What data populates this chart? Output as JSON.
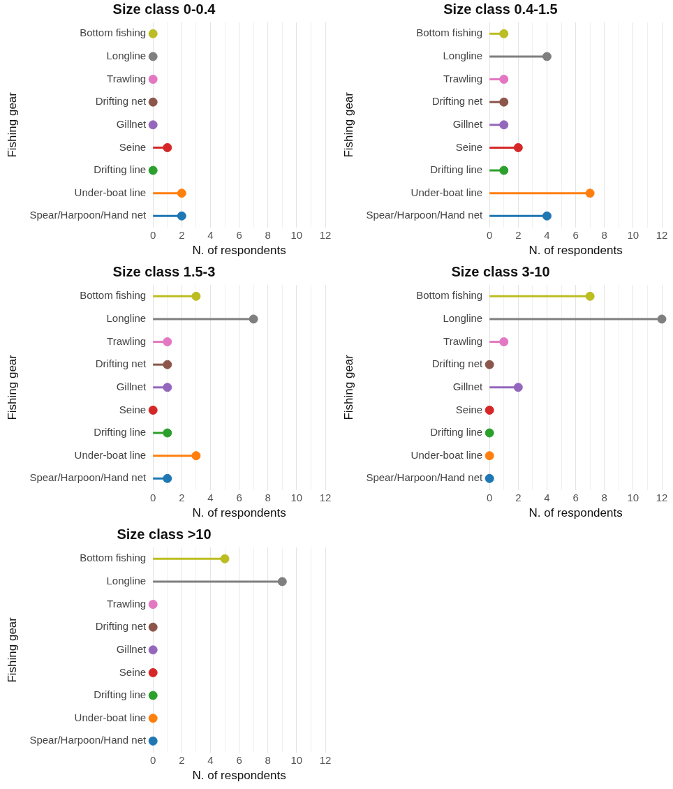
{
  "chart_data": [
    {
      "type": "lollipop",
      "orientation": "horizontal",
      "title": "Size class 0-0.4",
      "xlabel": "N. of respondents",
      "ylabel": "Fishing gear",
      "categories": [
        "Bottom fishing",
        "Longline",
        "Trawling",
        "Drifting net",
        "Gillnet",
        "Seine",
        "Drifting line",
        "Under-boat line",
        "Spear/Harpoon/Hand net"
      ],
      "values": [
        0,
        0,
        0,
        0,
        0,
        1,
        0,
        2,
        2
      ],
      "colors": [
        "#bcbd22",
        "#7f7f7f",
        "#e377c2",
        "#8c564b",
        "#9467bd",
        "#d62728",
        "#2ca02c",
        "#ff7f0e",
        "#1f77b4"
      ],
      "xlim": [
        0,
        12
      ],
      "xticks": [
        0,
        {
          "value": 1,
          "label": null
        },
        2,
        {
          "value": 3,
          "label": null
        },
        4,
        {
          "value": 5,
          "label": null
        },
        6,
        {
          "value": 7,
          "label": null
        },
        8,
        {
          "value": 9,
          "label": null
        },
        10,
        {
          "value": 11,
          "label": null
        },
        12
      ],
      "grid": "x",
      "legend": false,
      "marker": "circle"
    },
    {
      "type": "lollipop",
      "orientation": "horizontal",
      "title": "Size class 0.4-1.5",
      "xlabel": "N. of respondents",
      "ylabel": "Fishing gear",
      "categories": [
        "Bottom fishing",
        "Longline",
        "Trawling",
        "Drifting net",
        "Gillnet",
        "Seine",
        "Drifting line",
        "Under-boat line",
        "Spear/Harpoon/Hand net"
      ],
      "values": [
        1,
        4,
        1,
        1,
        1,
        2,
        1,
        7,
        4
      ],
      "colors": [
        "#bcbd22",
        "#7f7f7f",
        "#e377c2",
        "#8c564b",
        "#9467bd",
        "#d62728",
        "#2ca02c",
        "#ff7f0e",
        "#1f77b4"
      ],
      "xlim": [
        0,
        12
      ],
      "xticks": [
        0,
        {
          "value": 1,
          "label": null
        },
        2,
        {
          "value": 3,
          "label": null
        },
        4,
        {
          "value": 5,
          "label": null
        },
        6,
        {
          "value": 7,
          "label": null
        },
        8,
        {
          "value": 9,
          "label": null
        },
        10,
        {
          "value": 11,
          "label": null
        },
        12
      ],
      "grid": "x",
      "legend": false,
      "marker": "circle"
    },
    {
      "type": "lollipop",
      "orientation": "horizontal",
      "title": "Size class 1.5-3",
      "xlabel": "N. of respondents",
      "ylabel": "Fishing gear",
      "categories": [
        "Bottom fishing",
        "Longline",
        "Trawling",
        "Drifting net",
        "Gillnet",
        "Seine",
        "Drifting line",
        "Under-boat line",
        "Spear/Harpoon/Hand net"
      ],
      "values": [
        3,
        7,
        1,
        1,
        1,
        0,
        1,
        3,
        1
      ],
      "colors": [
        "#bcbd22",
        "#7f7f7f",
        "#e377c2",
        "#8c564b",
        "#9467bd",
        "#d62728",
        "#2ca02c",
        "#ff7f0e",
        "#1f77b4"
      ],
      "xlim": [
        0,
        12
      ],
      "xticks": [
        0,
        {
          "value": 1,
          "label": null
        },
        2,
        {
          "value": 3,
          "label": null
        },
        4,
        {
          "value": 5,
          "label": null
        },
        6,
        {
          "value": 7,
          "label": null
        },
        8,
        {
          "value": 9,
          "label": null
        },
        10,
        {
          "value": 11,
          "label": null
        },
        12
      ],
      "grid": "x",
      "legend": false,
      "marker": "circle"
    },
    {
      "type": "lollipop",
      "orientation": "horizontal",
      "title": "Size class 3-10",
      "xlabel": "N. of respondents",
      "ylabel": "Fishing gear",
      "categories": [
        "Bottom fishing",
        "Longline",
        "Trawling",
        "Drifting net",
        "Gillnet",
        "Seine",
        "Drifting line",
        "Under-boat line",
        "Spear/Harpoon/Hand net"
      ],
      "values": [
        7,
        12,
        1,
        0,
        2,
        0,
        0,
        0,
        0
      ],
      "colors": [
        "#bcbd22",
        "#7f7f7f",
        "#e377c2",
        "#8c564b",
        "#9467bd",
        "#d62728",
        "#2ca02c",
        "#ff7f0e",
        "#1f77b4"
      ],
      "xlim": [
        0,
        12
      ],
      "xticks": [
        0,
        {
          "value": 1,
          "label": null
        },
        2,
        {
          "value": 3,
          "label": null
        },
        4,
        {
          "value": 5,
          "label": null
        },
        6,
        {
          "value": 7,
          "label": null
        },
        8,
        {
          "value": 9,
          "label": null
        },
        10,
        {
          "value": 11,
          "label": null
        },
        12
      ],
      "grid": "x",
      "legend": false,
      "marker": "circle"
    },
    {
      "type": "lollipop",
      "orientation": "horizontal",
      "title": "Size class >10",
      "xlabel": "N. of respondents",
      "ylabel": "Fishing gear",
      "categories": [
        "Bottom fishing",
        "Longline",
        "Trawling",
        "Drifting net",
        "Gillnet",
        "Seine",
        "Drifting line",
        "Under-boat line",
        "Spear/Harpoon/Hand net"
      ],
      "values": [
        5,
        9,
        0,
        0,
        0,
        0,
        0,
        0,
        0
      ],
      "colors": [
        "#bcbd22",
        "#7f7f7f",
        "#e377c2",
        "#8c564b",
        "#9467bd",
        "#d62728",
        "#2ca02c",
        "#ff7f0e",
        "#1f77b4"
      ],
      "xlim": [
        0,
        12
      ],
      "xticks": [
        0,
        {
          "value": 1,
          "label": null
        },
        2,
        {
          "value": 3,
          "label": null
        },
        4,
        {
          "value": 5,
          "label": null
        },
        6,
        {
          "value": 7,
          "label": null
        },
        8,
        {
          "value": 9,
          "label": null
        },
        10,
        {
          "value": 11,
          "label": null
        },
        12
      ],
      "grid": "x",
      "legend": false,
      "marker": "circle"
    }
  ]
}
